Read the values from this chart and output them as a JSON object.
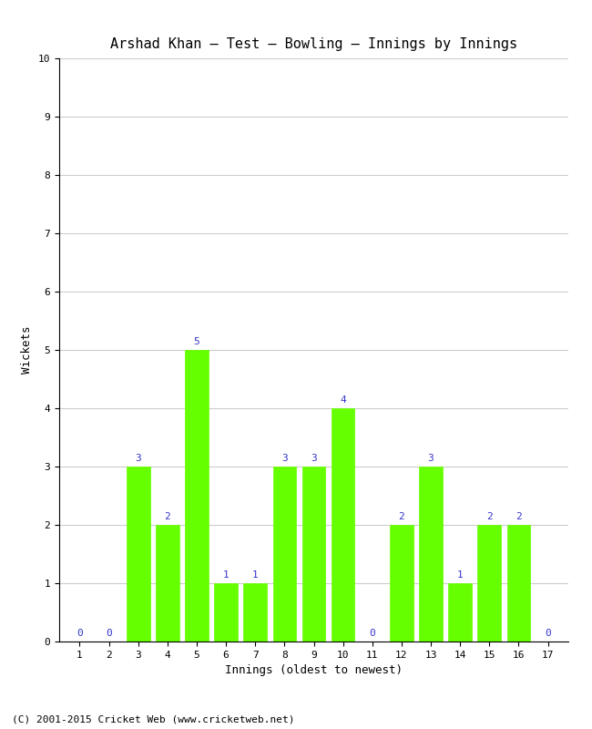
{
  "title": "Arshad Khan – Test – Bowling – Innings by Innings",
  "xlabel": "Innings (oldest to newest)",
  "ylabel": "Wickets",
  "innings": [
    1,
    2,
    3,
    4,
    5,
    6,
    7,
    8,
    9,
    10,
    11,
    12,
    13,
    14,
    15,
    16,
    17
  ],
  "wickets": [
    0,
    0,
    3,
    2,
    5,
    1,
    1,
    3,
    3,
    4,
    0,
    2,
    3,
    1,
    2,
    2,
    0
  ],
  "bar_color": "#66ff00",
  "bar_edge_color": "#66ff00",
  "label_color": "#3333cc",
  "ylim": [
    0,
    10
  ],
  "yticks": [
    0,
    1,
    2,
    3,
    4,
    5,
    6,
    7,
    8,
    9,
    10
  ],
  "xticks": [
    1,
    2,
    3,
    4,
    5,
    6,
    7,
    8,
    9,
    10,
    11,
    12,
    13,
    14,
    15,
    16,
    17
  ],
  "grid_color": "#cccccc",
  "background_color": "#ffffff",
  "footer": "(C) 2001-2015 Cricket Web (www.cricketweb.net)",
  "title_fontsize": 11,
  "label_fontsize": 9,
  "tick_fontsize": 8,
  "bar_label_fontsize": 8,
  "footer_fontsize": 8
}
